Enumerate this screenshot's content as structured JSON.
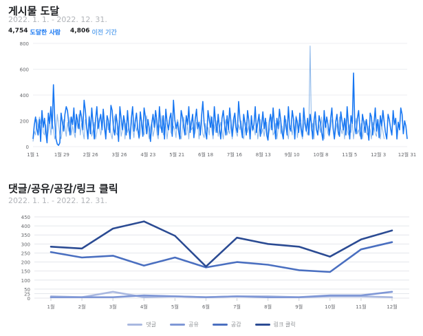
{
  "sections": [
    {
      "title": "게시물 도달",
      "date_range": "2022. 1. 1. - 2022. 12. 31.",
      "metrics": [
        {
          "value": "4,754",
          "label": "도달한 사람"
        },
        {
          "value": "4,806",
          "label": "이전 기간"
        }
      ]
    },
    {
      "title": "댓글/공유/공감/링크 클릭",
      "date_range": "2022. 1. 1. - 2022. 12. 31."
    }
  ],
  "colors": {
    "primary_series": "#1877f2",
    "previous_series": "#8fb9ea",
    "comments": "#a9b8e0",
    "shares": "#7f97d6",
    "likes": "#4a6fc0",
    "link_clicks": "#2b4b93"
  },
  "chart_data": [
    {
      "type": "line",
      "x_tick_labels": [
        "1월 1",
        "1월 29",
        "2월 26",
        "3월 26",
        "4월 23",
        "5월 21",
        "6월 18",
        "7월 16",
        "8월 13",
        "9월 10",
        "10월 8",
        "11월 5",
        "12월 3",
        "12월 31"
      ],
      "ylim": [
        0,
        800
      ],
      "y_ticks": [
        0,
        200,
        400,
        600,
        800
      ],
      "grid": true,
      "series": [
        {
          "role": "current",
          "values": [
            60,
            170,
            230,
            140,
            90,
            210,
            40,
            280,
            150,
            220,
            110,
            30,
            260,
            180,
            310,
            140,
            480,
            210,
            60,
            20,
            10,
            30,
            260,
            190,
            120,
            250,
            310,
            280,
            180,
            90,
            230,
            170,
            300,
            110,
            250,
            190,
            140,
            280,
            230,
            130,
            360,
            280,
            150,
            60,
            230,
            100,
            300,
            180,
            60,
            210,
            310,
            140,
            200,
            250,
            130,
            290,
            170,
            60,
            240,
            200,
            110,
            320,
            280,
            140,
            90,
            250,
            180,
            40,
            310,
            220,
            130,
            240,
            180,
            90,
            280,
            150,
            60,
            220,
            310,
            120,
            190,
            260,
            140,
            70,
            270,
            190,
            80,
            300,
            230,
            100,
            210,
            140,
            40,
            180,
            250,
            150,
            280,
            200,
            90,
            310,
            170,
            110,
            240,
            60,
            290,
            190,
            130,
            220,
            260,
            80,
            360,
            210,
            140,
            190,
            120,
            60,
            280,
            230,
            150,
            90,
            240,
            170,
            310,
            110,
            180,
            250,
            70,
            210,
            290,
            140,
            190,
            90,
            240,
            350,
            180,
            120,
            60,
            280,
            210,
            150,
            230,
            90,
            310,
            180,
            110,
            250,
            140,
            60,
            220,
            280,
            170,
            90,
            240,
            130,
            300,
            190,
            80,
            210,
            260,
            150,
            110,
            350,
            220,
            140,
            70,
            250,
            180,
            90,
            280,
            200,
            60,
            240,
            130,
            170,
            310,
            110,
            190,
            250,
            80,
            160,
            270,
            140,
            220,
            90,
            50,
            190,
            250,
            130,
            300,
            180,
            60,
            220,
            140,
            290,
            200,
            110,
            60,
            240,
            170,
            90,
            310,
            150,
            120,
            280,
            210,
            60,
            230,
            190,
            110,
            260,
            140,
            80,
            300,
            180,
            120,
            220,
            90,
            250,
            180,
            60,
            200,
            270,
            130,
            90,
            240,
            190,
            110,
            50,
            280,
            150,
            230,
            170,
            90,
            210,
            300,
            140,
            60,
            190,
            250,
            120,
            80,
            270,
            200,
            130,
            220,
            90,
            310,
            170,
            60,
            240,
            180,
            570,
            150,
            100,
            220,
            280,
            130,
            60,
            250,
            190,
            110,
            210,
            140,
            50,
            260,
            230,
            90,
            180,
            300,
            120,
            210,
            70,
            240,
            160,
            280,
            190,
            110,
            60,
            250,
            210,
            140,
            90,
            280,
            170,
            220,
            60,
            190,
            130,
            300,
            250,
            100,
            200,
            160,
            60
          ]
        },
        {
          "role": "previous",
          "values": [
            40,
            120,
            90,
            210,
            150,
            230,
            180,
            260,
            110,
            90,
            170,
            60,
            120,
            200,
            90,
            180,
            140,
            60,
            100,
            250,
            170,
            90,
            60,
            130,
            210,
            150,
            80,
            190,
            120,
            230,
            90,
            160,
            110,
            70,
            200,
            140,
            250,
            90,
            180,
            120,
            60,
            210,
            150,
            100,
            240,
            170,
            80,
            130,
            190,
            60,
            110,
            220,
            160,
            90,
            140,
            250,
            120,
            70,
            200,
            130,
            180,
            100,
            60,
            170,
            240,
            110,
            90,
            150,
            200,
            80,
            130,
            210,
            60,
            180,
            110,
            150,
            90,
            230,
            140,
            70,
            190,
            120,
            160,
            60,
            100,
            210,
            130,
            90,
            170,
            240,
            110,
            60,
            150,
            190,
            80,
            130,
            220,
            100,
            60,
            170,
            140,
            240,
            90,
            120,
            180,
            60,
            150,
            200,
            110,
            90,
            160,
            130,
            70,
            210,
            180,
            100,
            60,
            140,
            230,
            120,
            90,
            170,
            60,
            200,
            130,
            150,
            80,
            110,
            190,
            160,
            60,
            140,
            210,
            100,
            70,
            180,
            120,
            150,
            90,
            240,
            130,
            60,
            170,
            110,
            200,
            80,
            140,
            190,
            120,
            60,
            160,
            210,
            90,
            130,
            100,
            180,
            60,
            150,
            220,
            110,
            80,
            170,
            130,
            200,
            90,
            60,
            140,
            190,
            110,
            160,
            70,
            230,
            120,
            150,
            90,
            180,
            60,
            130,
            210,
            100,
            140,
            80,
            170,
            190,
            60,
            120,
            150,
            230,
            90,
            110,
            180,
            60,
            140,
            200,
            100,
            160,
            80,
            130,
            210,
            110,
            60,
            170,
            150,
            90,
            190,
            120,
            240,
            70,
            140,
            180,
            100,
            60,
            160,
            210,
            130,
            90,
            150,
            780,
            120,
            180,
            60,
            200,
            140,
            90,
            170,
            110,
            230,
            130,
            60,
            190,
            150,
            100,
            80,
            140,
            210,
            160,
            60,
            120,
            180,
            90,
            230,
            140,
            100,
            160,
            60,
            210,
            130,
            90,
            170,
            110,
            190,
            60,
            150,
            220,
            100,
            130,
            80,
            180,
            60,
            140,
            200,
            110,
            90,
            160,
            130,
            60,
            190,
            150,
            100,
            80,
            210,
            140,
            60,
            170,
            120,
            60
          ]
        }
      ]
    },
    {
      "type": "line",
      "categories": [
        "1월",
        "2월",
        "3월",
        "4월",
        "5월",
        "6월",
        "7월",
        "8월",
        "9월",
        "10월",
        "11월",
        "12월"
      ],
      "ylim": [
        0,
        450
      ],
      "y_ticks": [
        0,
        25,
        50,
        100,
        150,
        200,
        250,
        300,
        350,
        400,
        450
      ],
      "grid": true,
      "legend_position": "bottom-center",
      "series": [
        {
          "name": "댓글",
          "values": [
            10,
            5,
            35,
            5,
            10,
            5,
            10,
            10,
            5,
            10,
            10,
            5
          ]
        },
        {
          "name": "공유",
          "values": [
            5,
            5,
            5,
            15,
            10,
            5,
            10,
            5,
            5,
            15,
            15,
            35
          ]
        },
        {
          "name": "공감",
          "values": [
            255,
            225,
            235,
            180,
            225,
            170,
            200,
            185,
            155,
            145,
            270,
            310
          ]
        },
        {
          "name": "링크 클릭",
          "values": [
            285,
            275,
            385,
            425,
            345,
            175,
            335,
            300,
            285,
            230,
            325,
            375
          ]
        }
      ]
    }
  ]
}
